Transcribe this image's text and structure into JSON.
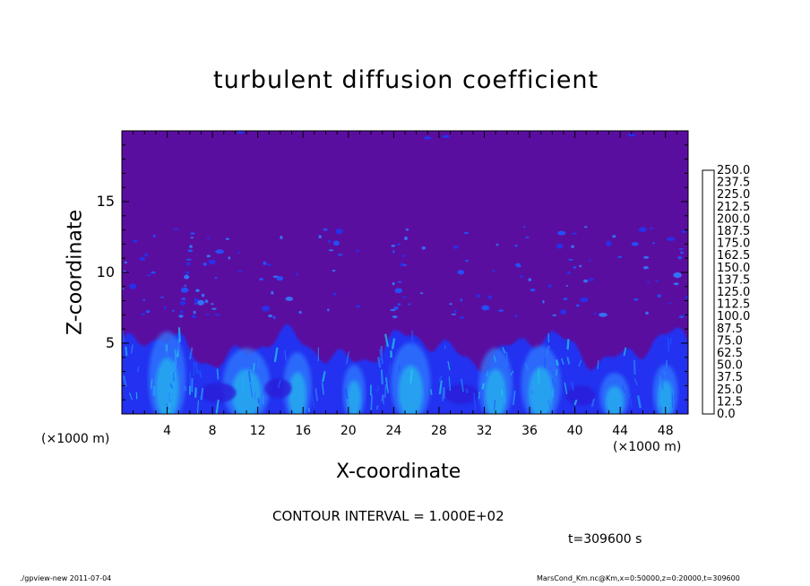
{
  "chart_data": {
    "type": "heatmap",
    "title": "turbulent diffusion coefficient",
    "xlabel": "X-coordinate",
    "ylabel": "Z-coordinate",
    "x_unit": "(×1000 m)",
    "y_unit": "(×1000 m)",
    "xlim": [
      0,
      50
    ],
    "ylim": [
      0,
      20
    ],
    "x_ticks": [
      4,
      8,
      12,
      16,
      20,
      24,
      28,
      32,
      36,
      40,
      44,
      48
    ],
    "y_ticks": [
      5,
      10,
      15
    ],
    "x_tick_labels": [
      "4",
      "8",
      "12",
      "16",
      "20",
      "24",
      "28",
      "32",
      "36",
      "40",
      "44",
      "48"
    ],
    "y_tick_labels": [
      "5",
      "10",
      "15"
    ],
    "colorbar": {
      "levels": [
        "0.0",
        "12.5",
        "25.0",
        "37.5",
        "50.0",
        "62.5",
        "75.0",
        "87.5",
        "100.0",
        "112.5",
        "125.0",
        "137.5",
        "150.0",
        "162.5",
        "175.0",
        "187.5",
        "200.0",
        "212.5",
        "225.0",
        "237.5",
        "250.0"
      ],
      "colors": [
        "#5a0ea0",
        "#2a1ad8",
        "#2233f0",
        "#1f55ff",
        "#2f7cff",
        "#25a8ff",
        "#23d0e8",
        "#24e0c4",
        "#1fe09a",
        "#22d86e",
        "#32d84a",
        "#58e034",
        "#8ce828",
        "#bdea1f",
        "#e8e81c",
        "#ffd21c",
        "#ffa81c",
        "#ff7a1c",
        "#ff4a22",
        "#f23a3a",
        "#f29494"
      ]
    },
    "background_value": 0.0,
    "features": [
      {
        "name": "turbulent boundary layer",
        "z_top_approx": 5.5
      },
      {
        "name": "scattered eddies",
        "z_range": [
          7,
          13
        ]
      }
    ]
  },
  "contour_interval": "CONTOUR INTERVAL = 1.000E+02",
  "time_label": "t=309600 s",
  "footer_left": "./gpview-new  2011-07-04",
  "footer_right": "MarsCond_Km.nc@Km,x=0:50000,z=0:20000,t=309600"
}
